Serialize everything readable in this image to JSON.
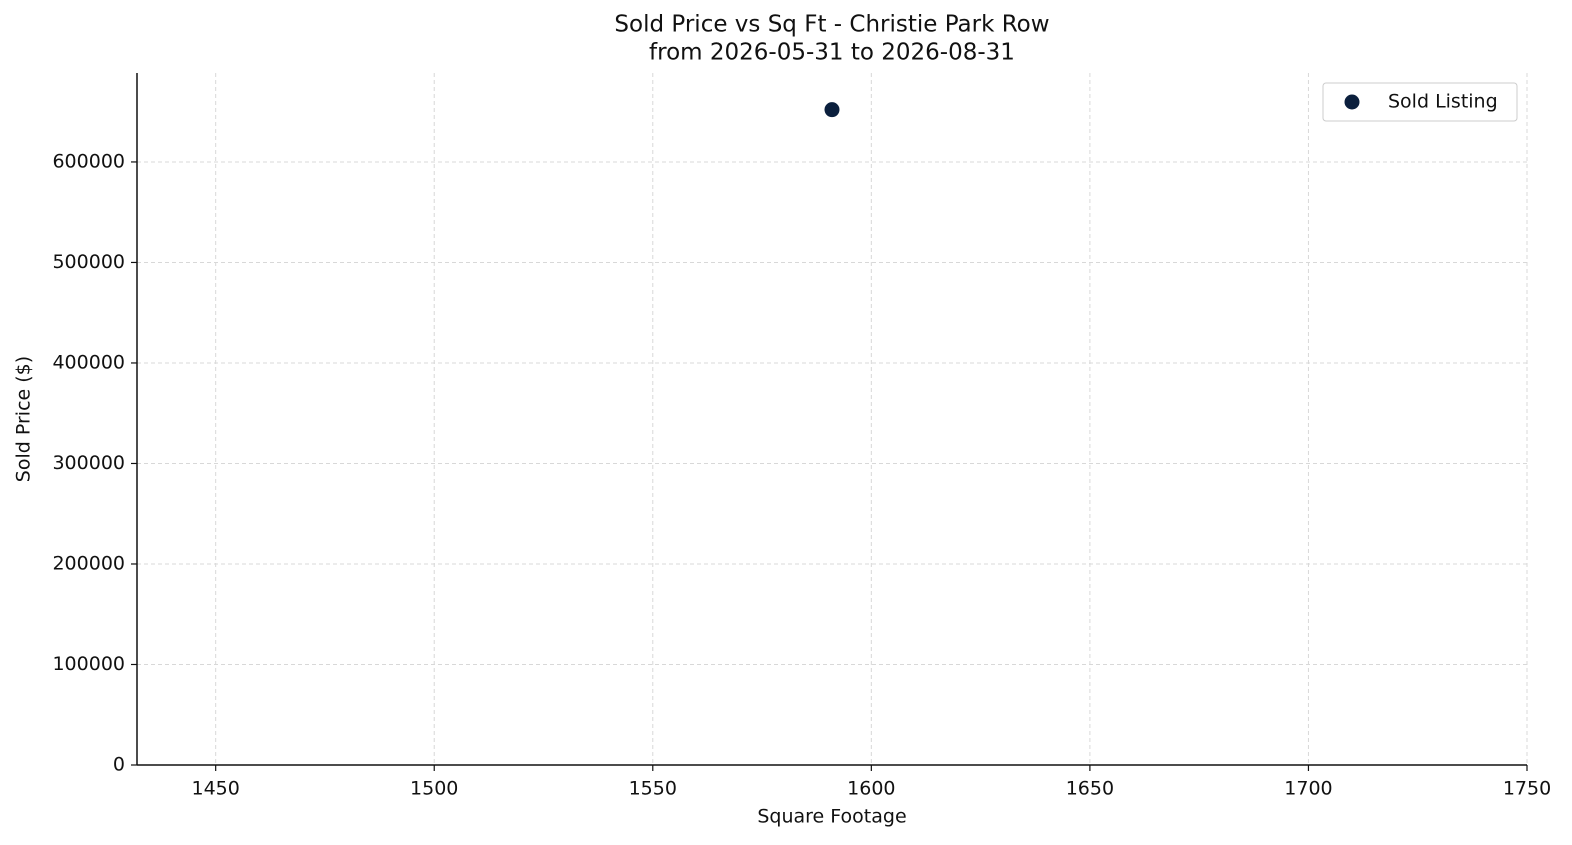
{
  "chart_data": {
    "type": "scatter",
    "title": "Sold Price vs Sq Ft - Christie Park Row",
    "subtitle": "from 2026-05-31 to 2026-08-31",
    "x_label": "Square Footage",
    "y_label": "Sold Price ($)",
    "series": [
      {
        "name": "Sold Listing",
        "color": "#0b1f3d",
        "x": [
          1591
        ],
        "values": [
          652000
        ]
      }
    ],
    "xlim": [
      1432,
      1750
    ],
    "ylim": [
      0,
      688500
    ],
    "xticks": [
      1450,
      1500,
      1550,
      1600,
      1650,
      1700,
      1750
    ],
    "yticks": [
      0,
      100000,
      200000,
      300000,
      400000,
      500000,
      600000
    ],
    "grid": true,
    "legend": "upper right"
  }
}
